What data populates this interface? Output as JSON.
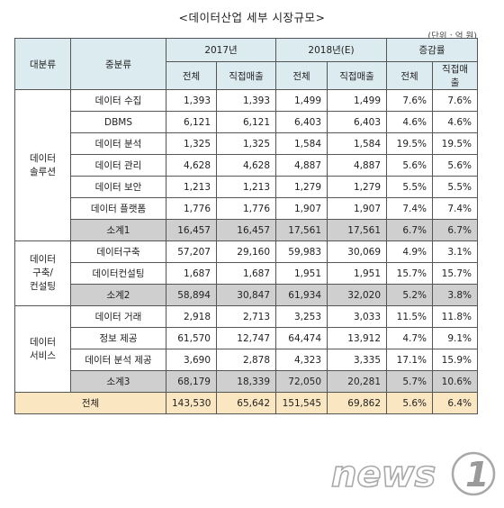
{
  "title": "<데이터산업 세부 시장규모>",
  "unit": "(단위 : 억 원)",
  "header": {
    "major": "대분류",
    "mid": "중분류",
    "y2017": "2017년",
    "y2018": "2018년(E)",
    "growth": "증감률",
    "total": "전체",
    "direct": "직접매출"
  },
  "groups": [
    {
      "label_lines": [
        "데이터",
        "솔루션"
      ],
      "rows": [
        {
          "name": "데이터 수집",
          "v": [
            "1,393",
            "1,393",
            "1,499",
            "1,499",
            "7.6%",
            "7.6%"
          ]
        },
        {
          "name": "DBMS",
          "v": [
            "6,121",
            "6,121",
            "6,403",
            "6,403",
            "4.6%",
            "4.6%"
          ]
        },
        {
          "name": "데이터 분석",
          "v": [
            "1,325",
            "1,325",
            "1,584",
            "1,584",
            "19.5%",
            "19.5%"
          ]
        },
        {
          "name": "데이터 관리",
          "v": [
            "4,628",
            "4,628",
            "4,887",
            "4,887",
            "5.6%",
            "5.6%"
          ]
        },
        {
          "name": "데이터 보안",
          "v": [
            "1,213",
            "1,213",
            "1,279",
            "1,279",
            "5.5%",
            "5.5%"
          ]
        },
        {
          "name": "데이터 플랫폼",
          "v": [
            "1,776",
            "1,776",
            "1,907",
            "1,907",
            "7.4%",
            "7.4%"
          ]
        }
      ],
      "subtotal": {
        "name": "소계1",
        "v": [
          "16,457",
          "16,457",
          "17,561",
          "17,561",
          "6.7%",
          "6.7%"
        ]
      }
    },
    {
      "label_lines": [
        "데이터",
        "구축/",
        "컨설팅"
      ],
      "rows": [
        {
          "name": "데이터구축",
          "v": [
            "57,207",
            "29,160",
            "59,983",
            "30,069",
            "4.9%",
            "3.1%"
          ]
        },
        {
          "name": "데이터컨설팅",
          "v": [
            "1,687",
            "1,687",
            "1,951",
            "1,951",
            "15.7%",
            "15.7%"
          ]
        }
      ],
      "subtotal": {
        "name": "소계2",
        "v": [
          "58,894",
          "30,847",
          "61,934",
          "32,020",
          "5.2%",
          "3.8%"
        ]
      }
    },
    {
      "label_lines": [
        "데이터",
        "서비스"
      ],
      "rows": [
        {
          "name": "데이터 거래",
          "v": [
            "2,918",
            "2,713",
            "3,253",
            "3,033",
            "11.5%",
            "11.8%"
          ]
        },
        {
          "name": "정보 제공",
          "v": [
            "61,570",
            "12,747",
            "64,474",
            "13,912",
            "4.7%",
            "9.1%"
          ]
        },
        {
          "name": "데이터 분석 제공",
          "v": [
            "3,690",
            "2,878",
            "4,323",
            "3,335",
            "17.1%",
            "15.9%"
          ]
        }
      ],
      "subtotal": {
        "name": "소계3",
        "v": [
          "68,179",
          "18,339",
          "72,050",
          "20,281",
          "5.7%",
          "10.6%"
        ]
      }
    }
  ],
  "grand_total": {
    "name": "전체",
    "v": [
      "143,530",
      "65,642",
      "151,545",
      "69,862",
      "5.6%",
      "6.4%"
    ]
  },
  "logo": {
    "text": "news1",
    "color": "#8f8f8f"
  }
}
